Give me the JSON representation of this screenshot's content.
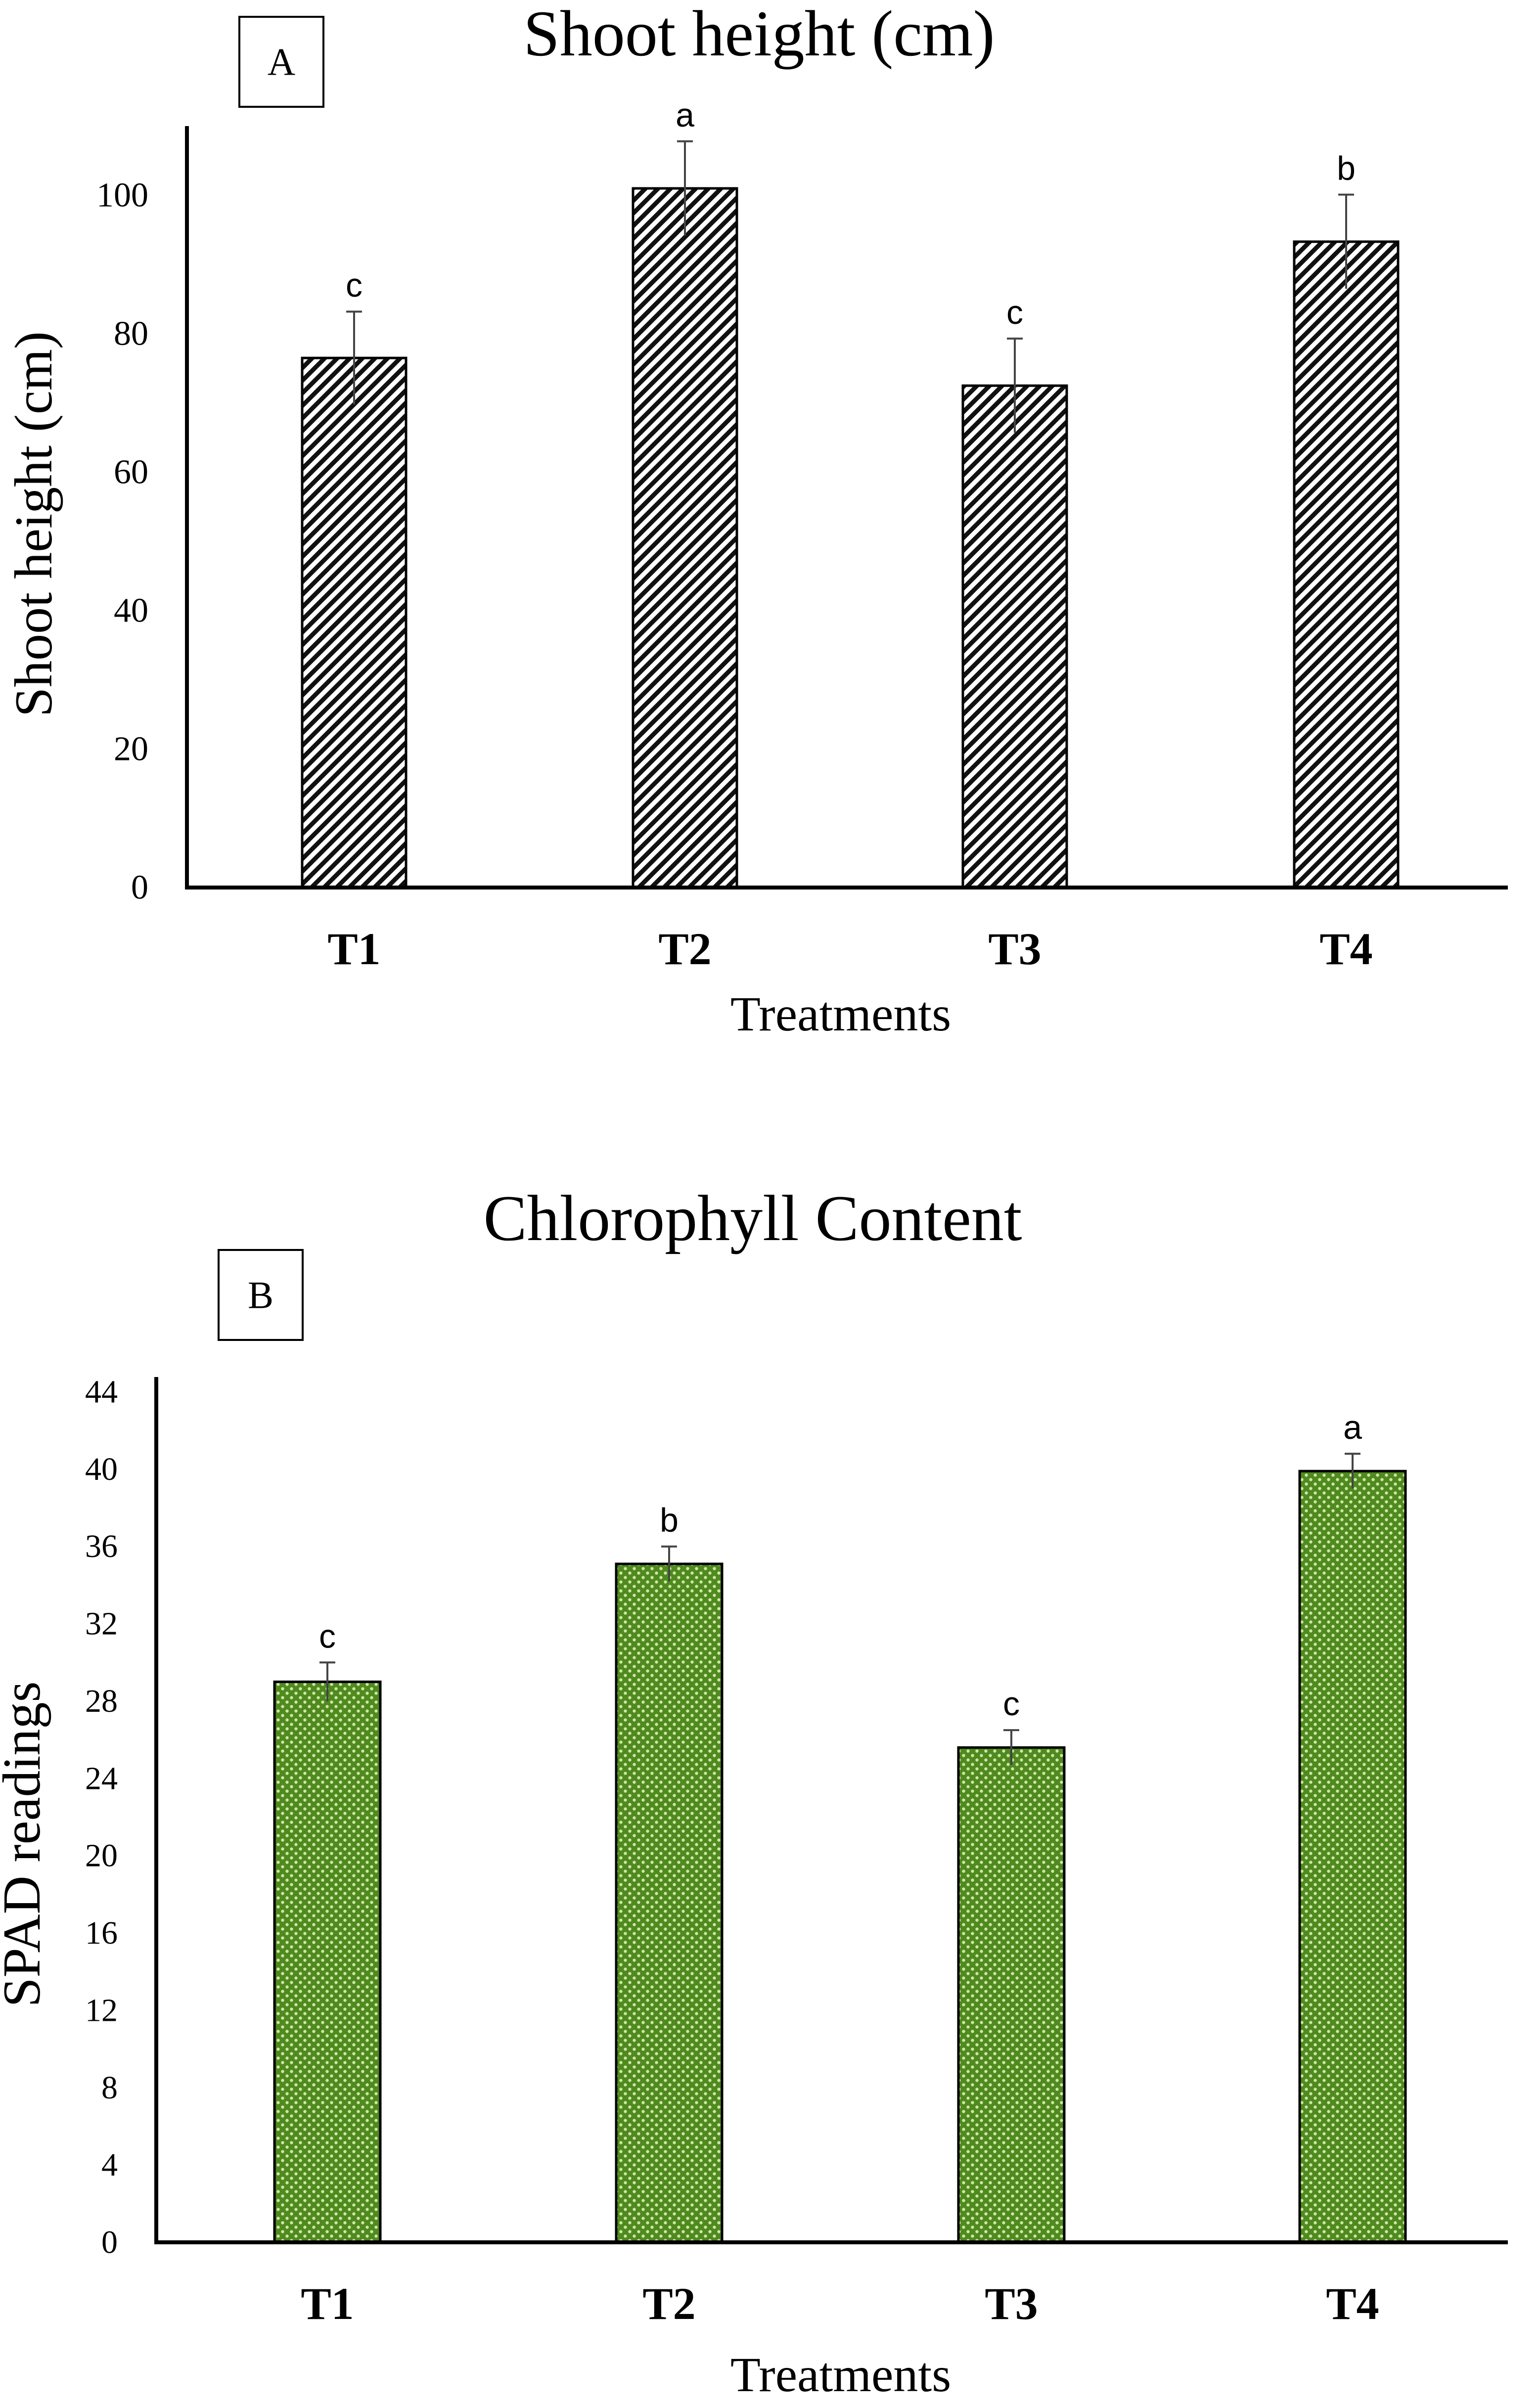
{
  "chart_data": [
    {
      "panel_label": "A",
      "type": "bar",
      "title": "Shoot height (cm)",
      "xlabel": "Treatments",
      "ylabel": "Shoot height (cm)",
      "categories": [
        "T1",
        "T2",
        "T3",
        "T4"
      ],
      "values": [
        76.5,
        101,
        72.5,
        93.3
      ],
      "errors": [
        6.7,
        6.8,
        6.8,
        6.8
      ],
      "significance_letters": [
        "c",
        "a",
        "c",
        "b"
      ],
      "ylim": [
        0,
        110
      ],
      "yticks": [
        0,
        20,
        40,
        60,
        80,
        100
      ],
      "grid": false,
      "bar_fill": "hatched",
      "bar_color": "#ffffff",
      "hatch_color": "#111111"
    },
    {
      "panel_label": "B",
      "type": "bar",
      "title": "Chlorophyll Content",
      "xlabel": "Treatments",
      "ylabel": "SPAD readings",
      "categories": [
        "T1",
        "T2",
        "T3",
        "T4"
      ],
      "values": [
        29,
        35.1,
        25.6,
        39.9
      ],
      "errors": [
        1.0,
        0.9,
        0.9,
        0.9
      ],
      "significance_letters": [
        "c",
        "b",
        "c",
        "a"
      ],
      "ylim": [
        0,
        44
      ],
      "yticks": [
        0,
        4,
        8,
        12,
        16,
        20,
        24,
        28,
        32,
        36,
        40,
        44
      ],
      "grid": false,
      "bar_fill": "dotted",
      "bar_color": "#4f8a1e",
      "hatch_color": "#cfe6a8"
    }
  ]
}
